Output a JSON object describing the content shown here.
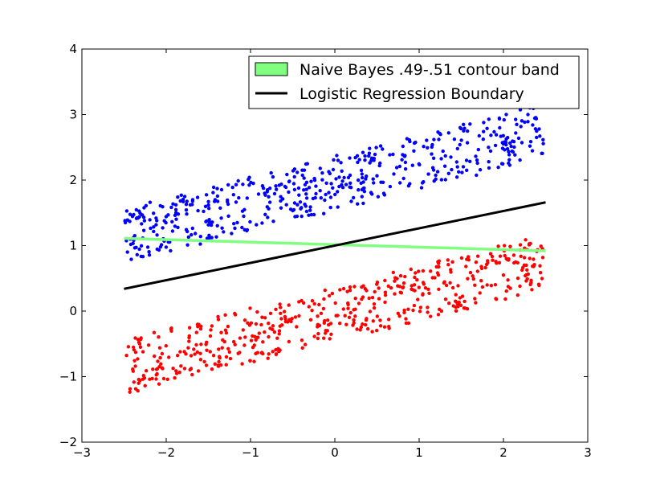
{
  "chart_data": {
    "type": "scatter",
    "title": "",
    "xlabel": "",
    "ylabel": "",
    "xlim": [
      -3,
      3
    ],
    "ylim": [
      -2,
      4
    ],
    "x_ticks": [
      -3,
      -2,
      -1,
      0,
      1,
      2,
      3
    ],
    "y_ticks": [
      -2,
      -1,
      0,
      1,
      2,
      3,
      4
    ],
    "x_tick_labels": [
      "−3",
      "−2",
      "−1",
      "0",
      "1",
      "2",
      "3"
    ],
    "y_tick_labels": [
      "−2",
      "−1",
      "0",
      "1",
      "2",
      "3",
      "4"
    ],
    "grid": false,
    "legend_position": "top-right",
    "scatter_clusters": [
      {
        "color": "#0000ff",
        "x_range": [
          -2.5,
          2.5
        ],
        "center_line": {
          "slope": 0.32,
          "intercept": 1.95
        },
        "spread": 0.42,
        "count": 500
      },
      {
        "color": "#ff0000",
        "x_range": [
          -2.5,
          2.5
        ],
        "center_line": {
          "slope": 0.32,
          "intercept": -0.05
        },
        "spread": 0.42,
        "count": 500
      }
    ],
    "lines": [
      {
        "name": "Naive Bayes .49-.51 contour band",
        "kind": "band",
        "color": "#80ff80",
        "x": [
          -2.5,
          2.5
        ],
        "y": [
          1.11,
          0.92
        ]
      },
      {
        "name": "Logistic Regression Boundary",
        "kind": "line",
        "color": "#000000",
        "x": [
          -2.5,
          2.5
        ],
        "y": [
          0.34,
          1.66
        ]
      }
    ],
    "legend": [
      {
        "label": "Naive Bayes .49-.51 contour band",
        "marker": "patch",
        "color": "#80ff80"
      },
      {
        "label": "Logistic Regression Boundary",
        "marker": "line",
        "color": "#000000"
      }
    ]
  }
}
